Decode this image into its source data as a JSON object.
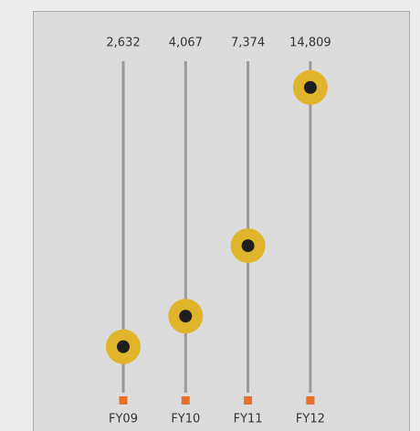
{
  "chart_data": {
    "type": "dot",
    "categories": [
      "FY09",
      "FY10",
      "FY11",
      "FY12"
    ],
    "values": [
      2632,
      4067,
      7374,
      14809
    ],
    "value_labels": [
      "2,632",
      "4,067",
      "7,374",
      "14,809"
    ],
    "ylim": [
      0,
      16000
    ],
    "color": "#e1b52b",
    "track_color": "#9a9a9a",
    "base_color": "#e8702a"
  }
}
